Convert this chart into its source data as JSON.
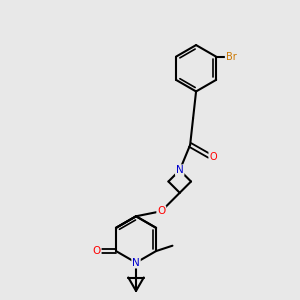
{
  "bg_color": "#e8e8e8",
  "atom_colors": {
    "C": "#000000",
    "N": "#0000cd",
    "O": "#ff0000",
    "Br": "#cc7700"
  },
  "bond_color": "#000000"
}
